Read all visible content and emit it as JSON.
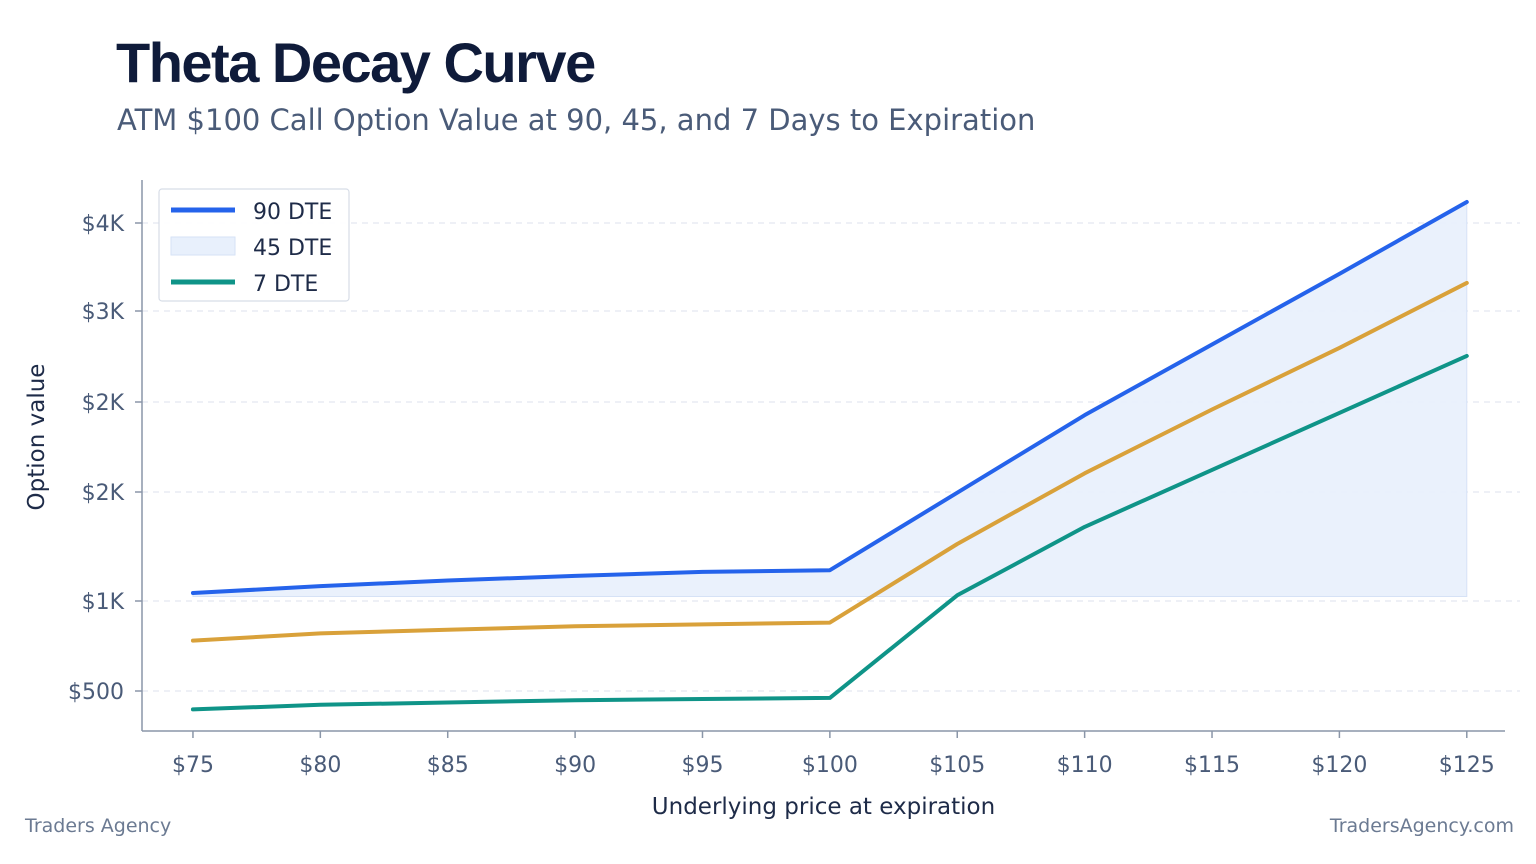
{
  "header": {
    "title": "Theta Decay Curve",
    "subtitle": "ATM $100 Call Option Value at 90, 45, and 7 Days to Expiration"
  },
  "footer": {
    "left": "Traders Agency",
    "right": "TradersAgency.com"
  },
  "chart_data": {
    "type": "line",
    "xlabel": "Underlying price at expiration",
    "ylabel": "Option value",
    "x_ticks": [
      75,
      80,
      85,
      90,
      95,
      100,
      105,
      110,
      115,
      120,
      125
    ],
    "x_tick_labels": [
      "$75",
      "$80",
      "$85",
      "$90",
      "$95",
      "$100",
      "$105",
      "$110",
      "$115",
      "$120",
      "$125"
    ],
    "xlim": [
      73,
      126.5
    ],
    "y_tick_labels": [
      "$500",
      "$1K",
      "$2K",
      "$2K",
      "$3K",
      "$4K"
    ],
    "grid": true,
    "legend_position": "top-left",
    "x": [
      75,
      80,
      85,
      90,
      95,
      100,
      105,
      110,
      115,
      120,
      125
    ],
    "series": [
      {
        "name": "90 DTE",
        "color": "#2563eb",
        "style": "line",
        "values": [
          1070,
          1130,
          1180,
          1220,
          1255,
          1270,
          1950,
          2630,
          3250,
          3870,
          4500
        ]
      },
      {
        "name": "45 DTE",
        "color": "#d9a13a",
        "style": "line",
        "legend_swatch": "shaded-band",
        "values": [
          780,
          820,
          840,
          860,
          870,
          880,
          1500,
          2120,
          2680,
          3220,
          3790
        ]
      },
      {
        "name": "7 DTE",
        "color": "#0f9488",
        "style": "line",
        "values": [
          420,
          440,
          450,
          460,
          465,
          470,
          1050,
          1650,
          2150,
          2650,
          3150
        ]
      }
    ],
    "band": {
      "between": "90 DTE",
      "baseline": 1040,
      "color": "#e8f0fc"
    }
  }
}
